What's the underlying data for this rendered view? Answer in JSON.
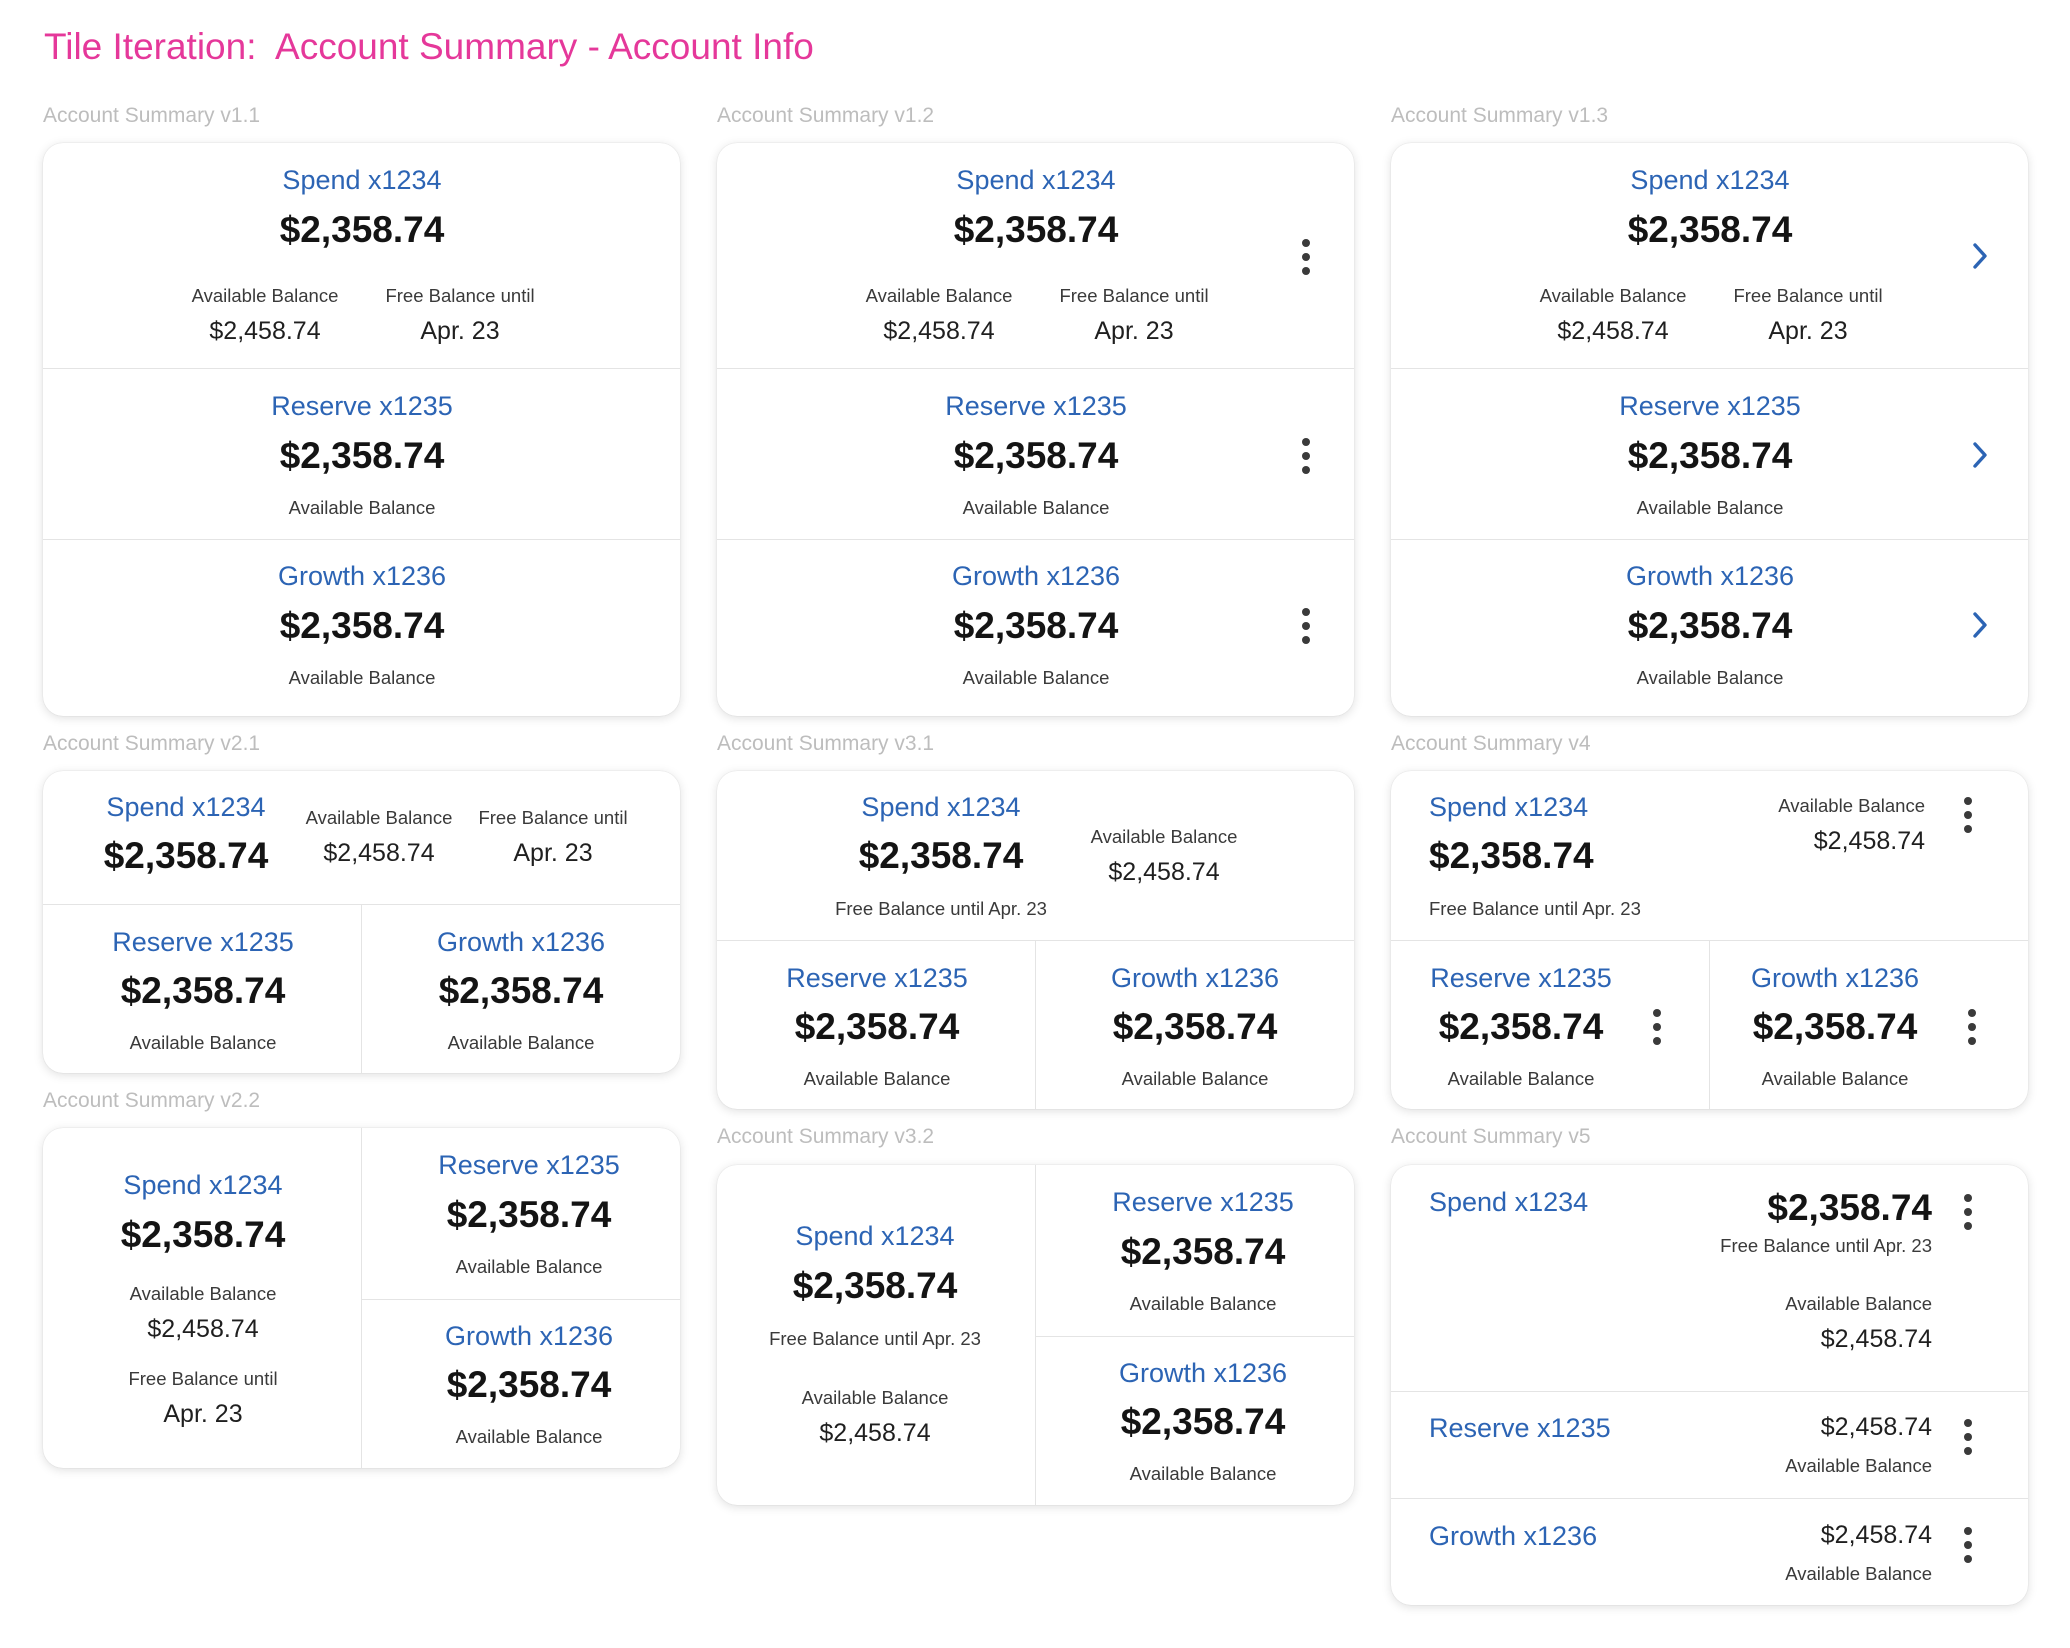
{
  "page_title": "Tile Iteration:  Account Summary - Account Info",
  "versions": {
    "v1_1": "Account Summary v1.1",
    "v1_2": "Account Summary v1.2",
    "v1_3": "Account Summary v1.3",
    "v2_1": "Account Summary v2.1",
    "v2_2": "Account Summary v2.2",
    "v3_1": "Account Summary v3.1",
    "v3_2": "Account Summary v3.2",
    "v4": "Account Summary v4",
    "v5": "Account Summary v5"
  },
  "accounts": {
    "spend": "Spend x1234",
    "reserve": "Reserve x1235",
    "growth": "Growth x1236"
  },
  "values": {
    "balance": "$2,358.74",
    "available": "$2,458.74",
    "free_date": "Apr. 23"
  },
  "labels": {
    "available_balance": "Available Balance",
    "free_balance_until": "Free Balance until",
    "free_balance_until_date": "Free Balance until Apr. 23"
  },
  "icons": {
    "more": "more-vertical-icon",
    "chevron": "chevron-right-icon",
    "accent_color": "#2c64b4",
    "title_color": "#e5389a"
  }
}
